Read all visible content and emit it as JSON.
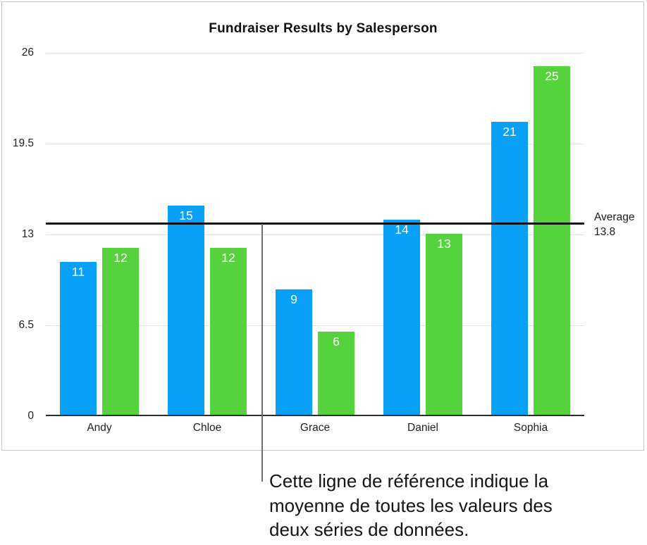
{
  "chart_data": {
    "type": "bar",
    "title": "Fundraiser Results by Salesperson",
    "categories": [
      "Andy",
      "Chloe",
      "Grace",
      "Daniel",
      "Sophia"
    ],
    "series": [
      {
        "name": "series-1",
        "color": "#09a1f8",
        "values": [
          11,
          15,
          9,
          14,
          21
        ]
      },
      {
        "name": "series-2",
        "color": "#56d23c",
        "values": [
          12,
          12,
          6,
          13,
          25
        ]
      }
    ],
    "ylim": [
      0,
      26
    ],
    "yticks": [
      26,
      19.5,
      13,
      6.5,
      0
    ],
    "grid": true,
    "legend": "none",
    "bar_value_labels": [
      [
        11,
        15,
        9,
        14,
        21
      ],
      [
        12,
        12,
        6,
        13,
        25
      ]
    ],
    "reference_line": {
      "label": "Average",
      "value": 13.8,
      "value_label": "13.8"
    }
  },
  "callout": {
    "lines": [
      "Cette ligne de référence indique la",
      "moyenne de toutes les valeurs des",
      "deux séries de données."
    ]
  },
  "colors": {
    "bar_blue": "#09a1f8",
    "bar_green": "#56d23c",
    "reference_line": "#111111",
    "gridline": "#e2e2e2",
    "axis": "#2d2d2d",
    "frame_border": "#c6c6c6",
    "callout_line": "#6e6e6e"
  }
}
